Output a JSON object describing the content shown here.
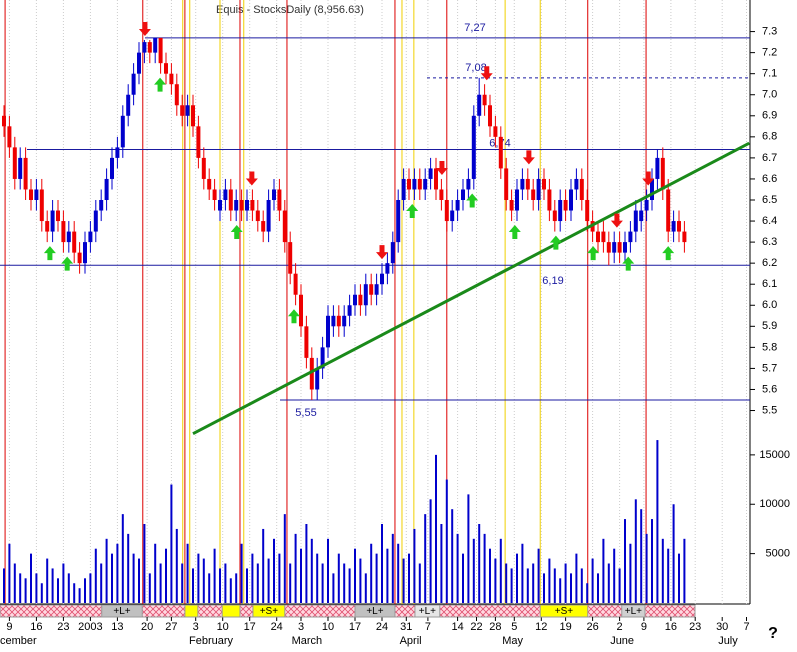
{
  "chart_data": [
    {
      "type": "candlestick",
      "title": "Equis - StocksDaily (8,956.63)",
      "up_color": "#0000cc",
      "down_color": "#ee0000",
      "open": [
        6.9,
        6.85,
        6.75,
        6.6,
        6.7,
        6.55,
        6.5,
        6.55,
        6.4,
        6.35,
        6.45,
        6.4,
        6.3,
        6.35,
        6.25,
        6.2,
        6.3,
        6.35,
        6.45,
        6.5,
        6.6,
        6.7,
        6.75,
        6.9,
        7.0,
        7.1,
        7.2,
        7.25,
        7.2,
        7.27,
        7.15,
        7.1,
        7.05,
        6.95,
        6.9,
        6.95,
        6.85,
        6.7,
        6.6,
        6.55,
        6.45,
        6.5,
        6.55,
        6.45,
        6.5,
        6.45,
        6.5,
        6.45,
        6.4,
        6.35,
        6.5,
        6.55,
        6.45,
        6.3,
        6.15,
        6.05,
        5.9,
        5.75,
        5.6,
        5.7,
        5.8,
        5.9,
        5.95,
        5.9,
        5.95,
        6.0,
        6.05,
        6.0,
        6.1,
        6.05,
        6.1,
        6.15,
        6.2,
        6.3,
        6.5,
        6.6,
        6.55,
        6.6,
        6.55,
        6.6,
        6.65,
        6.55,
        6.5,
        6.4,
        6.45,
        6.5,
        6.55,
        6.6,
        6.9,
        7.0,
        6.95,
        6.85,
        6.8,
        6.65,
        6.5,
        6.45,
        6.55,
        6.6,
        6.55,
        6.5,
        6.6,
        6.55,
        6.45,
        6.4,
        6.5,
        6.45,
        6.55,
        6.6,
        6.5,
        6.4,
        6.35,
        6.35,
        6.3,
        6.25,
        6.3,
        6.25,
        6.3,
        6.35,
        6.4,
        6.45,
        6.5,
        6.6,
        6.7,
        6.55,
        6.35,
        6.4,
        6.35
      ],
      "high": [
        6.95,
        6.9,
        6.8,
        6.75,
        6.75,
        6.6,
        6.6,
        6.6,
        6.45,
        6.5,
        6.5,
        6.45,
        6.4,
        6.4,
        6.3,
        6.35,
        6.4,
        6.5,
        6.55,
        6.65,
        6.75,
        6.8,
        6.95,
        7.05,
        7.15,
        7.25,
        7.26,
        7.26,
        7.27,
        7.27,
        7.2,
        7.15,
        7.1,
        7.0,
        7.0,
        7.0,
        6.9,
        6.75,
        6.65,
        6.6,
        6.55,
        6.6,
        6.6,
        6.55,
        6.55,
        6.55,
        6.55,
        6.5,
        6.45,
        6.55,
        6.6,
        6.6,
        6.5,
        6.35,
        6.2,
        6.1,
        5.95,
        5.8,
        5.75,
        5.85,
        6.0,
        6.0,
        6.0,
        6.0,
        6.05,
        6.1,
        6.1,
        6.15,
        6.15,
        6.15,
        6.2,
        6.25,
        6.35,
        6.55,
        6.65,
        6.65,
        6.65,
        6.65,
        6.65,
        6.7,
        6.7,
        6.6,
        6.55,
        6.5,
        6.55,
        6.6,
        6.65,
        6.95,
        7.08,
        7.05,
        7.0,
        6.9,
        6.85,
        6.7,
        6.55,
        6.6,
        6.65,
        6.65,
        6.6,
        6.65,
        6.65,
        6.6,
        6.5,
        6.55,
        6.55,
        6.6,
        6.65,
        6.65,
        6.55,
        6.45,
        6.4,
        6.4,
        6.35,
        6.35,
        6.35,
        6.35,
        6.4,
        6.5,
        6.5,
        6.55,
        6.65,
        6.74,
        6.75,
        6.6,
        6.45,
        6.45,
        6.4
      ],
      "low": [
        6.8,
        6.7,
        6.55,
        6.55,
        6.5,
        6.45,
        6.45,
        6.35,
        6.3,
        6.3,
        6.35,
        6.25,
        6.25,
        6.2,
        6.15,
        6.15,
        6.25,
        6.3,
        6.4,
        6.45,
        6.55,
        6.65,
        6.7,
        6.85,
        6.95,
        7.05,
        7.15,
        7.15,
        7.15,
        7.1,
        7.05,
        7.0,
        6.9,
        6.85,
        6.85,
        6.8,
        6.65,
        6.55,
        6.5,
        6.45,
        6.4,
        6.45,
        6.4,
        6.4,
        6.4,
        6.4,
        6.4,
        6.35,
        6.3,
        6.3,
        6.45,
        6.4,
        6.25,
        6.1,
        6.0,
        5.85,
        5.7,
        5.55,
        5.55,
        5.65,
        5.75,
        5.85,
        5.85,
        5.85,
        5.9,
        5.95,
        5.95,
        5.95,
        6.0,
        6.0,
        6.05,
        6.1,
        6.15,
        6.25,
        6.45,
        6.5,
        6.5,
        6.5,
        6.5,
        6.55,
        6.5,
        6.45,
        6.35,
        6.35,
        6.4,
        6.45,
        6.5,
        6.55,
        6.85,
        6.9,
        6.8,
        6.75,
        6.6,
        6.45,
        6.4,
        6.4,
        6.5,
        6.5,
        6.45,
        6.45,
        6.5,
        6.4,
        6.35,
        6.35,
        6.4,
        6.4,
        6.5,
        6.45,
        6.35,
        6.3,
        6.25,
        6.25,
        6.19,
        6.2,
        6.2,
        6.2,
        6.25,
        6.3,
        6.35,
        6.4,
        6.45,
        6.55,
        6.5,
        6.3,
        6.3,
        6.3,
        6.25
      ],
      "close": [
        6.85,
        6.75,
        6.6,
        6.7,
        6.55,
        6.5,
        6.55,
        6.4,
        6.35,
        6.45,
        6.4,
        6.3,
        6.35,
        6.25,
        6.2,
        6.3,
        6.35,
        6.45,
        6.5,
        6.6,
        6.7,
        6.75,
        6.9,
        7.0,
        7.1,
        7.2,
        7.25,
        7.2,
        7.27,
        7.15,
        7.1,
        7.05,
        6.95,
        6.9,
        6.95,
        6.85,
        6.7,
        6.6,
        6.55,
        6.5,
        6.5,
        6.55,
        6.45,
        6.5,
        6.45,
        6.5,
        6.45,
        6.4,
        6.35,
        6.5,
        6.55,
        6.45,
        6.3,
        6.15,
        6.05,
        5.9,
        5.75,
        5.6,
        5.7,
        5.8,
        5.95,
        5.95,
        5.9,
        5.95,
        6.0,
        6.05,
        6.0,
        6.1,
        6.05,
        6.1,
        6.15,
        6.2,
        6.3,
        6.5,
        6.6,
        6.55,
        6.6,
        6.55,
        6.6,
        6.65,
        6.55,
        6.5,
        6.4,
        6.45,
        6.5,
        6.55,
        6.6,
        6.9,
        7.0,
        6.95,
        6.85,
        6.8,
        6.65,
        6.5,
        6.45,
        6.55,
        6.6,
        6.55,
        6.5,
        6.6,
        6.55,
        6.45,
        6.4,
        6.5,
        6.45,
        6.55,
        6.6,
        6.5,
        6.4,
        6.35,
        6.3,
        6.3,
        6.25,
        6.3,
        6.25,
        6.3,
        6.35,
        6.45,
        6.45,
        6.5,
        6.6,
        6.7,
        6.55,
        6.35,
        6.4,
        6.35,
        6.3
      ],
      "ylim": [
        5.36,
        7.45
      ],
      "yticks": [
        5.5,
        5.6,
        5.7,
        5.8,
        5.9,
        {
          "value": 6,
          "label": "6.0"
        },
        6.1,
        6.2,
        6.3,
        6.4,
        6.5,
        6.6,
        6.7,
        6.8,
        6.9,
        {
          "value": 7,
          "label": "7.0"
        },
        7.1,
        7.2,
        7.3
      ],
      "xticks": [
        {
          "value": 1,
          "label": "9"
        },
        {
          "value": 6,
          "label": "16"
        },
        {
          "value": 11,
          "label": "23"
        },
        {
          "value": 16,
          "label": "2003"
        },
        {
          "value": 21,
          "label": "13"
        },
        {
          "value": 26.5,
          "label": "20"
        },
        {
          "value": 31,
          "label": "27"
        },
        {
          "value": 35.5,
          "label": "3"
        },
        {
          "value": 40.5,
          "label": "10"
        },
        {
          "value": 45.5,
          "label": "17"
        },
        {
          "value": 50.5,
          "label": "24"
        },
        {
          "value": 55,
          "label": "3"
        },
        {
          "value": 60,
          "label": "10"
        },
        {
          "value": 65,
          "label": "17"
        },
        {
          "value": 70,
          "label": "24"
        },
        {
          "value": 74.5,
          "label": "31"
        },
        {
          "value": 78.5,
          "label": "7"
        },
        {
          "value": 84,
          "label": "14"
        },
        {
          "value": 87.5,
          "label": "22"
        },
        {
          "value": 91,
          "label": "28"
        },
        {
          "value": 94.5,
          "label": "5"
        },
        {
          "value": 99.5,
          "label": "12"
        },
        {
          "value": 104,
          "label": "19"
        },
        {
          "value": 109,
          "label": "26"
        },
        {
          "value": 114,
          "label": "2"
        },
        {
          "value": 118.5,
          "label": "9"
        },
        {
          "value": 123.5,
          "label": "16"
        },
        {
          "value": 128,
          "label": "23"
        },
        {
          "value": 133,
          "label": "30"
        },
        {
          "value": 137.5,
          "label": "7"
        }
      ],
      "month_ticks": [
        {
          "value": 0,
          "label": "cember"
        },
        {
          "value": 35,
          "label": "February"
        },
        {
          "value": 54,
          "label": "March"
        },
        {
          "value": 74,
          "label": "April"
        },
        {
          "value": 93,
          "label": "May"
        },
        {
          "value": 113,
          "label": "June"
        },
        {
          "value": 133,
          "label": "July"
        }
      ],
      "levels": {
        "values": [
          7.27,
          7.08,
          6.74,
          6.19,
          5.55
        ],
        "value_labels": [
          "7,27",
          "7,08",
          "6,74",
          "6,19",
          "5,55"
        ],
        "color": "#1a1aa0"
      },
      "trendline": {
        "x": [
          35,
          138
        ],
        "y": [
          5.39,
          6.77
        ],
        "color": "#1a8a1a"
      },
      "signal_lines": {
        "red": [
          0.2,
          25.7,
          33.5,
          43.7,
          52.4,
          72.4,
          82,
          108.1,
          118.9
        ],
        "yellow": [
          33.1,
          34.4,
          40,
          44.4,
          73.7,
          75.9,
          92.8,
          99.3
        ],
        "red_color": "#dd0000",
        "yellow_color": "#f0d000"
      },
      "arrows": {
        "up": [
          8.5,
          11.7,
          28.9,
          43.1,
          53.7,
          75.6,
          86.7,
          94.6,
          102.2,
          109.1,
          115.6,
          123
        ],
        "down": [
          26.1,
          45.9,
          70,
          81.1,
          89.4,
          97.2,
          113.5,
          119.3
        ],
        "up_color": "#22cc22",
        "down_color": "#ee1111"
      },
      "strip": [
        {
          "label": "+L+",
          "from": 18.1,
          "to": 25.6,
          "color": "#c0c0c0"
        },
        {
          "from": 33.5,
          "to": 35.9,
          "color": "#ffff00"
        },
        {
          "from": 40.4,
          "to": 43.7,
          "color": "#ffff00"
        },
        {
          "label": "+S+",
          "from": 46.1,
          "to": 52,
          "color": "#ffff00"
        },
        {
          "label": "+L+",
          "from": 65,
          "to": 72.4,
          "color": "#c0c0c0"
        },
        {
          "label": "+L+",
          "from": 76.1,
          "to": 80.7,
          "color": "#e6e6e6"
        },
        {
          "label": "+S+",
          "from": 99.3,
          "to": 108.1,
          "color": "#ffff00"
        },
        {
          "label": "+L+",
          "from": 114.4,
          "to": 118.7,
          "color": "#d0d0d0"
        }
      ],
      "help_label": "?"
    },
    {
      "type": "bar",
      "color": "#0000cc",
      "values": [
        3500,
        6000,
        4000,
        3000,
        2500,
        5000,
        3000,
        2000,
        4500,
        3500,
        2500,
        4000,
        3000,
        2000,
        1500,
        2500,
        3000,
        5500,
        4000,
        6500,
        5000,
        6000,
        9000,
        7000,
        5000,
        4500,
        8000,
        3000,
        6000,
        4000,
        5500,
        12000,
        7500,
        4000,
        6000,
        3500,
        5000,
        4500,
        3000,
        5500,
        3500,
        4000,
        2500,
        3000,
        6000,
        3500,
        5000,
        4000,
        7500,
        4500,
        6500,
        5000,
        9000,
        4000,
        7000,
        5500,
        8000,
        6500,
        5000,
        4000,
        6500,
        3000,
        5000,
        4000,
        3500,
        5500,
        4500,
        3000,
        6000,
        5000,
        8000,
        5500,
        7000,
        6000,
        4500,
        5000,
        7500,
        4000,
        9000,
        10500,
        15000,
        8000,
        12500,
        9500,
        7000,
        5000,
        11000,
        6500,
        8000,
        7000,
        5500,
        4500,
        6500,
        4000,
        3500,
        5000,
        6000,
        3500,
        4000,
        5500,
        3000,
        4500,
        3500,
        2500,
        4000,
        3000,
        5000,
        3500,
        2000,
        4500,
        3000,
        6500,
        4000,
        5500,
        3500,
        8500,
        6000,
        10500,
        9500,
        7000,
        8500,
        16500,
        6500,
        5500,
        10000,
        5000,
        6500
      ],
      "ylim": [
        0,
        16000
      ],
      "yticks": [
        5000,
        10000,
        15000
      ]
    }
  ]
}
